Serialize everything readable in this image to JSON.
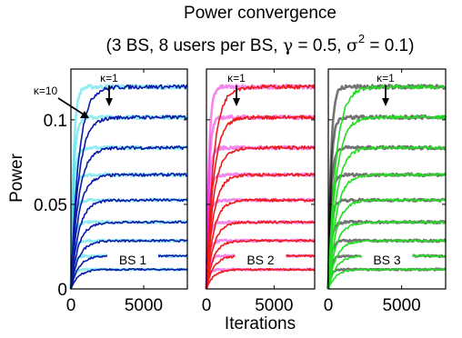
{
  "title": {
    "line1": "Power convergence",
    "line2_prefix": "(3 BS, 8 users per BS, ",
    "gamma_symbol": "γ",
    "gamma_value": " = 0.5, ",
    "sigma_symbol": "σ",
    "sigma_exp": "2",
    "sigma_value": " = 0.1)"
  },
  "ylabel": "Power",
  "xlabel": "Iterations",
  "colors": {
    "axes": "#000000"
  },
  "chart_data": {
    "type": "line",
    "title": "Power convergence (3 BS, 8 users per BS, γ = 0.5, σ² = 0.1)",
    "xlabel": "Iterations",
    "ylabel": "Power",
    "xlim": [
      0,
      8000
    ],
    "ylim": [
      0,
      0.13
    ],
    "yticks": [
      {
        "value": 0,
        "label": "0"
      },
      {
        "value": 0.05,
        "label": "0.05"
      },
      {
        "value": 0.1,
        "label": "0.1"
      }
    ],
    "xticks": [
      {
        "value": 0,
        "label": "0"
      },
      {
        "value": 5000,
        "label": "5000"
      }
    ],
    "panels": [
      {
        "label": "BS 1",
        "levels": [
          0.0115,
          0.0195,
          0.0285,
          0.0395,
          0.0525,
          0.0675,
          0.0835,
          0.1015,
          0.1195
        ],
        "colors": {
          "kappa_1": "#0a1aa8",
          "kappa_10": "#33dde8"
        },
        "annotations": [
          "κ=10",
          "κ=1"
        ],
        "series": [
          {
            "name": "κ=1",
            "color": "#0a1aa8"
          },
          {
            "name": "κ=10",
            "color": "#33dde8"
          }
        ]
      },
      {
        "label": "BS 2",
        "levels": [
          0.0115,
          0.0195,
          0.0285,
          0.0395,
          0.0525,
          0.0675,
          0.0835,
          0.1015,
          0.1195
        ],
        "colors": {
          "kappa_1": "#ee1a1a",
          "kappa_10": "#ee22dd"
        },
        "annotations": [
          "κ=1"
        ],
        "series": [
          {
            "name": "κ=1",
            "color": "#ee1a1a"
          },
          {
            "name": "κ=10",
            "color": "#ee22dd"
          }
        ]
      },
      {
        "label": "BS 3",
        "levels": [
          0.0115,
          0.0195,
          0.0285,
          0.0395,
          0.0525,
          0.0675,
          0.0835,
          0.1015,
          0.1195
        ],
        "colors": {
          "kappa_1": "#22dd22",
          "kappa_10": "#000000"
        },
        "annotations": [
          "κ=1"
        ],
        "series": [
          {
            "name": "κ=1",
            "color": "#22dd22"
          },
          {
            "name": "κ=10",
            "color": "#000000"
          }
        ]
      }
    ]
  }
}
